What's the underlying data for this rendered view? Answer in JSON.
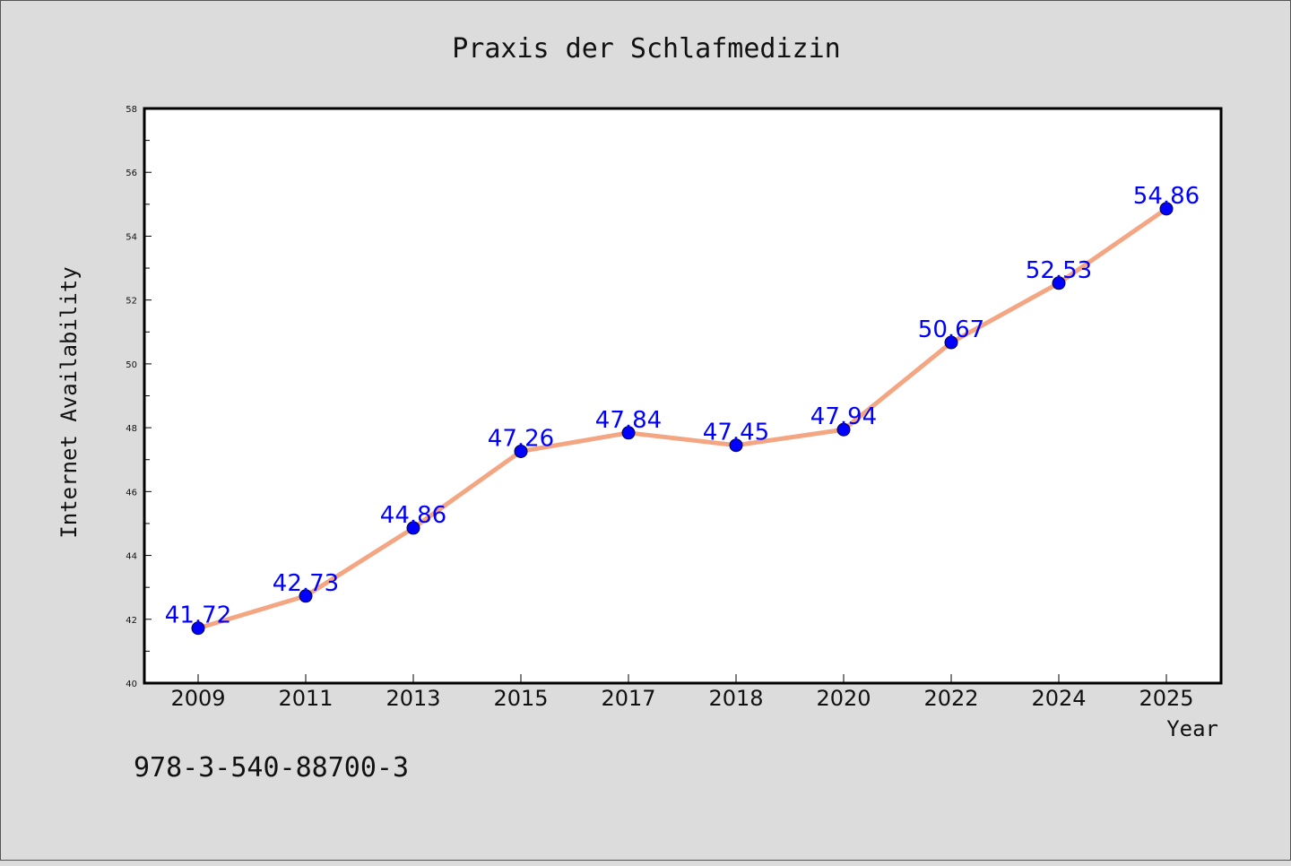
{
  "chart_data": {
    "type": "line",
    "title": "Praxis der Schlafmedizin",
    "xlabel": "Year",
    "ylabel": "Internet Availability",
    "categories": [
      "2009",
      "2011",
      "2013",
      "2015",
      "2017",
      "2018",
      "2020",
      "2022",
      "2024",
      "2025"
    ],
    "series": [
      {
        "values": [
          41.72,
          42.73,
          44.86,
          47.26,
          47.84,
          47.45,
          47.94,
          50.67,
          52.53,
          54.86
        ],
        "data_labels": [
          "41.72",
          "42.73",
          "44.86",
          "47.26",
          "47.84",
          "47.45",
          "47.94",
          "50.67",
          "52.53",
          "54.86"
        ]
      }
    ],
    "ylim": [
      40,
      58
    ],
    "yticks": [
      "40",
      "42",
      "44",
      "46",
      "48",
      "50",
      "52",
      "54",
      "56",
      "58"
    ],
    "grid": false,
    "legend": "none",
    "colors": {
      "line": "#f4a582",
      "marker": "#0000ff",
      "label": "#0000ff",
      "background": "#dcdcdc",
      "plot_background": "#ffffff"
    }
  },
  "footer": {
    "isbn": "978-3-540-88700-3"
  }
}
